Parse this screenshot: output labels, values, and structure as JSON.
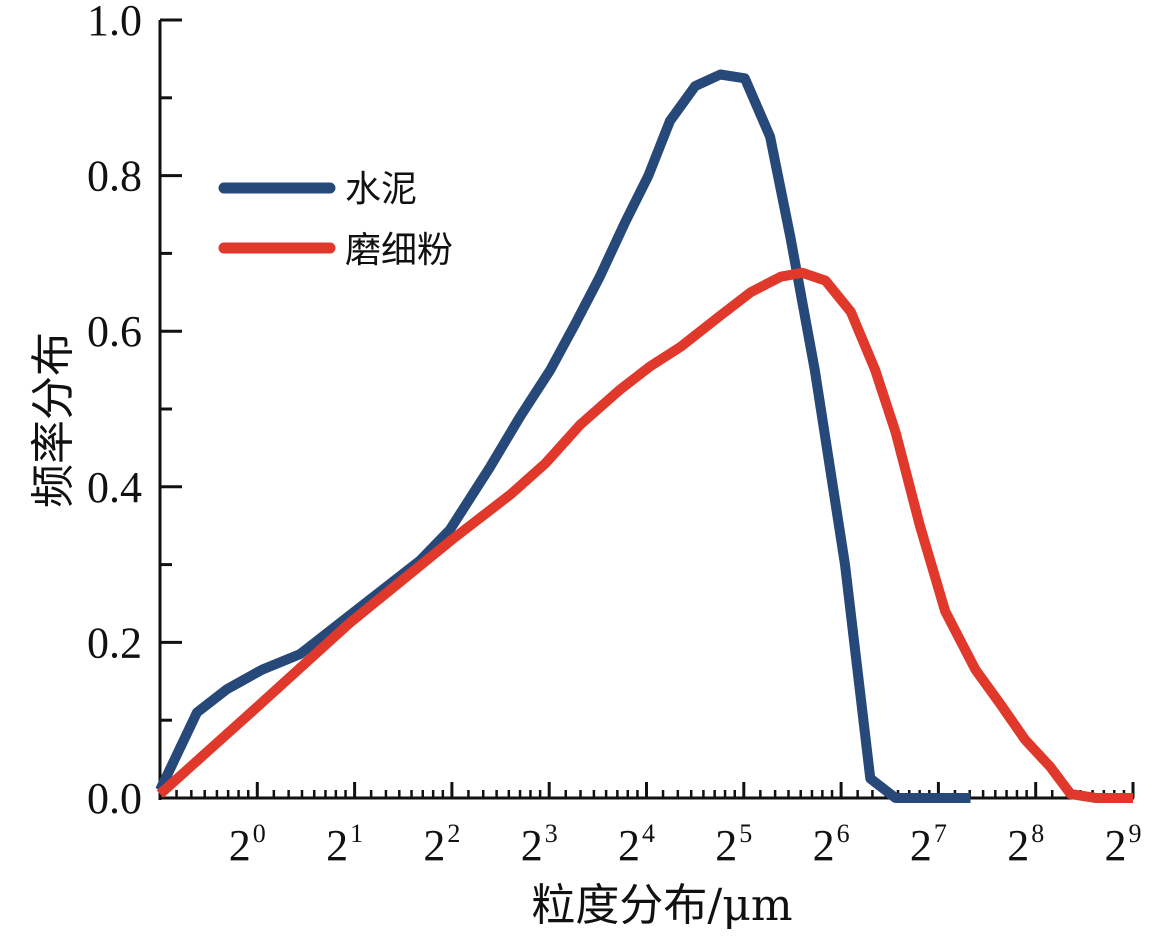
{
  "chart_data": {
    "type": "line",
    "title": "",
    "xlabel": "粒度分布/μm",
    "ylabel": "频率分布",
    "xscale": "log2",
    "xlim_log2": [
      -1,
      9
    ],
    "ylim": [
      0,
      1.0
    ],
    "grid": false,
    "legend_position": "top-left",
    "x_ticks": [
      {
        "base": "2",
        "exp": "0",
        "log2": 0
      },
      {
        "base": "2",
        "exp": "1",
        "log2": 1
      },
      {
        "base": "2",
        "exp": "2",
        "log2": 2
      },
      {
        "base": "2",
        "exp": "3",
        "log2": 3
      },
      {
        "base": "2",
        "exp": "4",
        "log2": 4
      },
      {
        "base": "2",
        "exp": "5",
        "log2": 5
      },
      {
        "base": "2",
        "exp": "6",
        "log2": 6
      },
      {
        "base": "2",
        "exp": "7",
        "log2": 7
      },
      {
        "base": "2",
        "exp": "8",
        "log2": 8
      },
      {
        "base": "2",
        "exp": "9",
        "log2": 9
      }
    ],
    "y_ticks": [
      {
        "label": "0.0",
        "value": 0.0
      },
      {
        "label": "0.2",
        "value": 0.2
      },
      {
        "label": "0.4",
        "value": 0.4
      },
      {
        "label": "0.6",
        "value": 0.6
      },
      {
        "label": "0.8",
        "value": 0.8
      },
      {
        "label": "1.0",
        "value": 1.0
      }
    ],
    "series": [
      {
        "name": "水泥",
        "color": "#27497a",
        "x_log2": [
          -1.0,
          -0.62,
          -0.31,
          0.05,
          0.44,
          0.85,
          1.26,
          1.67,
          1.98,
          2.39,
          2.7,
          3.01,
          3.27,
          3.52,
          3.78,
          4.02,
          4.24,
          4.5,
          4.76,
          5.01,
          5.27,
          5.48,
          5.73,
          6.04,
          6.3,
          6.56,
          7.33
        ],
        "y": [
          0.01,
          0.11,
          0.14,
          0.165,
          0.185,
          0.225,
          0.265,
          0.305,
          0.345,
          0.425,
          0.49,
          0.55,
          0.61,
          0.67,
          0.74,
          0.8,
          0.87,
          0.915,
          0.93,
          0.925,
          0.85,
          0.72,
          0.55,
          0.3,
          0.025,
          0.0,
          0.0
        ]
      },
      {
        "name": "磨细粉",
        "color": "#e0382b",
        "x_log2": [
          -1.0,
          -0.02,
          0.95,
          2.03,
          2.6,
          2.96,
          3.32,
          3.73,
          4.04,
          4.35,
          4.76,
          5.07,
          5.38,
          5.6,
          5.84,
          6.1,
          6.35,
          6.56,
          6.81,
          7.07,
          7.38,
          7.64,
          7.89,
          8.15,
          8.36,
          8.62,
          9.0
        ],
        "y": [
          0.005,
          0.115,
          0.225,
          0.335,
          0.39,
          0.43,
          0.48,
          0.525,
          0.555,
          0.58,
          0.62,
          0.65,
          0.67,
          0.675,
          0.665,
          0.625,
          0.55,
          0.47,
          0.35,
          0.24,
          0.165,
          0.12,
          0.075,
          0.04,
          0.005,
          0.0,
          0.0
        ]
      }
    ]
  }
}
